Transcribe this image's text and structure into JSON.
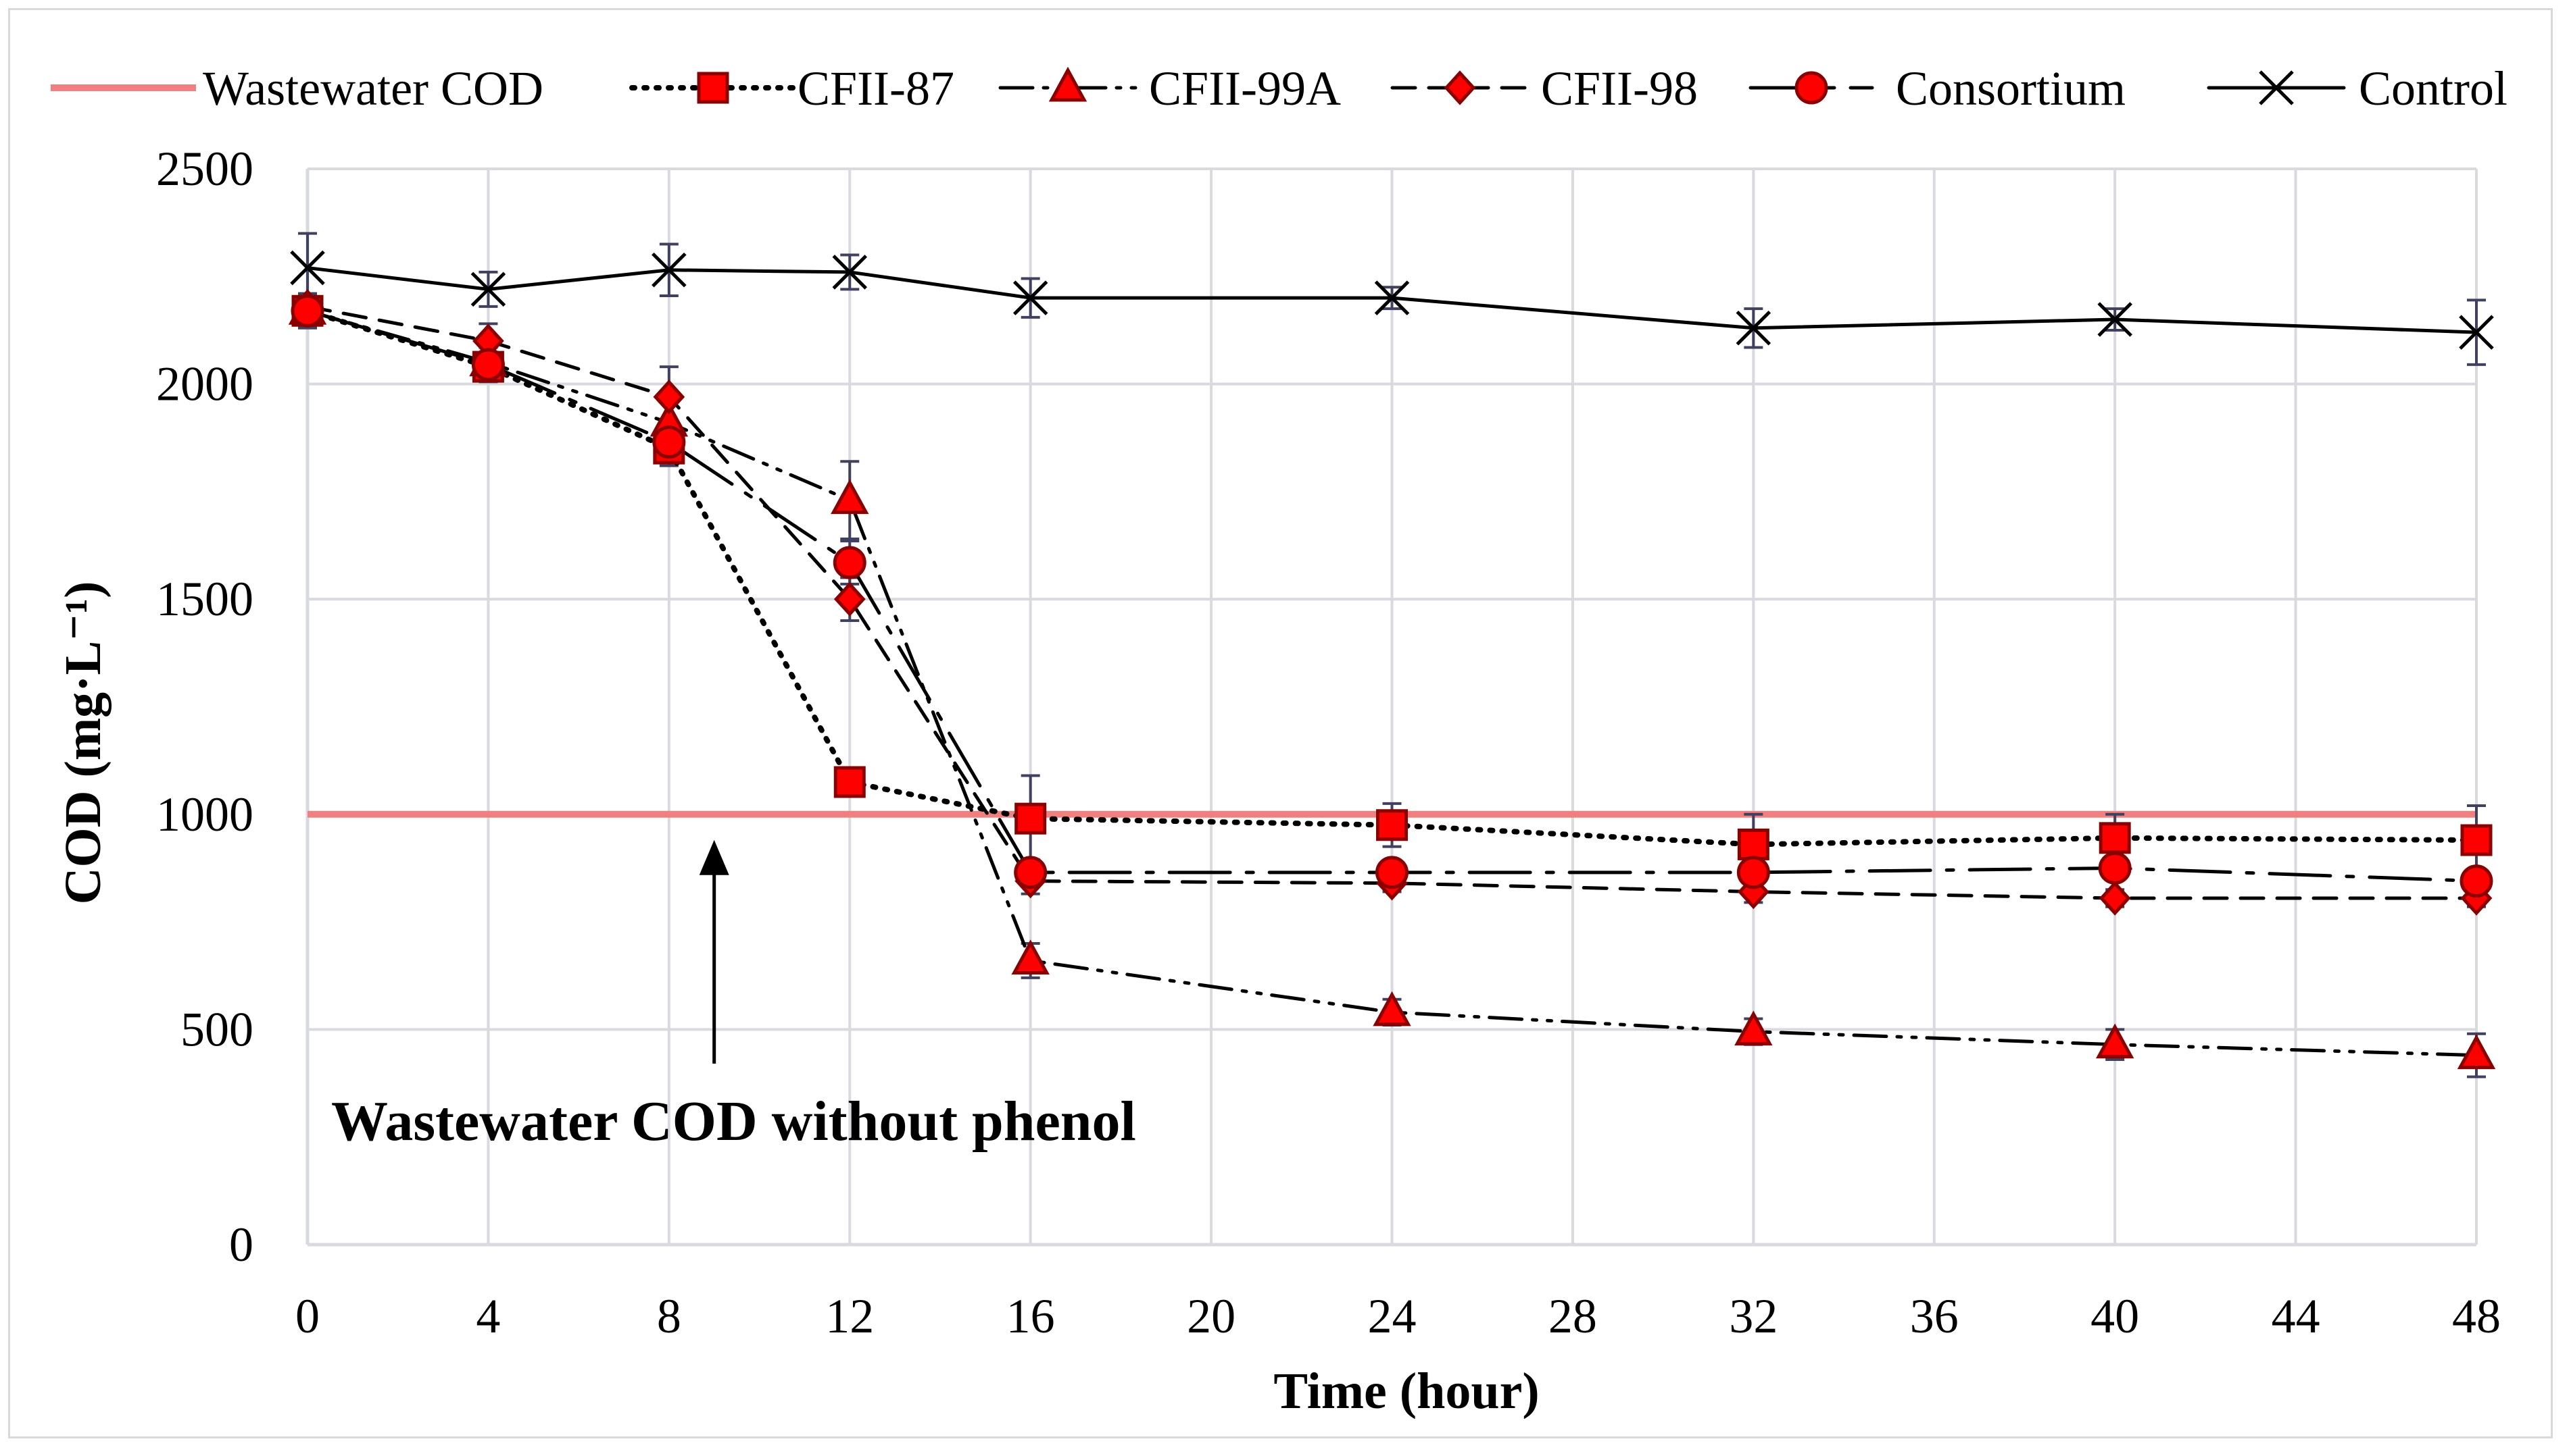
{
  "chart_data": {
    "type": "line",
    "title": "",
    "xlabel": "Time (hour)",
    "ylabel": "COD (mg·L⁻¹)",
    "xlim": [
      0,
      48
    ],
    "ylim": [
      0,
      2500
    ],
    "xticks": [
      0,
      4,
      8,
      12,
      16,
      20,
      24,
      28,
      32,
      36,
      40,
      44,
      48
    ],
    "yticks": [
      0,
      500,
      1000,
      1500,
      2000,
      2500
    ],
    "grid": true,
    "legend_position": "top",
    "colors": {
      "marker_fill": "#ff0000",
      "marker_edge": "#8b0000",
      "line": "#000000",
      "reference_line": "#f08080",
      "grid": "#d9d9e0",
      "error_bar": "#404060"
    },
    "reference_line": {
      "name": "Wastewater COD",
      "y": 1000
    },
    "series": [
      {
        "name": "CFII-87",
        "marker": "square",
        "dash": "dotted",
        "x": [
          0,
          4,
          8,
          12,
          16,
          24,
          32,
          40,
          48
        ],
        "y": [
          2170,
          2040,
          1850,
          1075,
          990,
          975,
          930,
          945,
          940
        ],
        "err": [
          40,
          30,
          40,
          30,
          100,
          50,
          70,
          55,
          80
        ]
      },
      {
        "name": "CFII-99A",
        "marker": "triangle",
        "dash": "dash-dot-dot",
        "x": [
          0,
          4,
          8,
          12,
          16,
          24,
          32,
          40,
          48
        ],
        "y": [
          2170,
          2050,
          1910,
          1730,
          660,
          540,
          495,
          465,
          440
        ],
        "err": [
          30,
          40,
          50,
          90,
          40,
          30,
          30,
          35,
          50
        ]
      },
      {
        "name": "CFII-98",
        "marker": "diamond",
        "dash": "dashed",
        "x": [
          0,
          4,
          8,
          12,
          16,
          24,
          32,
          40,
          48
        ],
        "y": [
          2180,
          2100,
          1970,
          1500,
          845,
          840,
          820,
          805,
          805
        ],
        "err": [
          30,
          40,
          70,
          50,
          30,
          20,
          25,
          20,
          20
        ]
      },
      {
        "name": "Consortium",
        "marker": "circle",
        "dash": "long-dash-dot",
        "x": [
          0,
          4,
          8,
          12,
          16,
          24,
          32,
          40,
          48
        ],
        "y": [
          2170,
          2045,
          1865,
          1585,
          865,
          865,
          865,
          875,
          845
        ],
        "err": [
          35,
          40,
          40,
          50,
          30,
          25,
          30,
          25,
          25
        ]
      },
      {
        "name": "Control",
        "marker": "x",
        "dash": "solid",
        "x": [
          0,
          4,
          8,
          12,
          16,
          24,
          32,
          40,
          48
        ],
        "y": [
          2270,
          2220,
          2265,
          2260,
          2200,
          2200,
          2130,
          2150,
          2120
        ],
        "err": [
          80,
          40,
          60,
          40,
          45,
          25,
          45,
          25,
          75
        ]
      }
    ],
    "annotations": [
      {
        "text": "Wastewater COD without phenol",
        "arrow_points_to": {
          "x": 9,
          "y": 1000
        }
      }
    ]
  }
}
